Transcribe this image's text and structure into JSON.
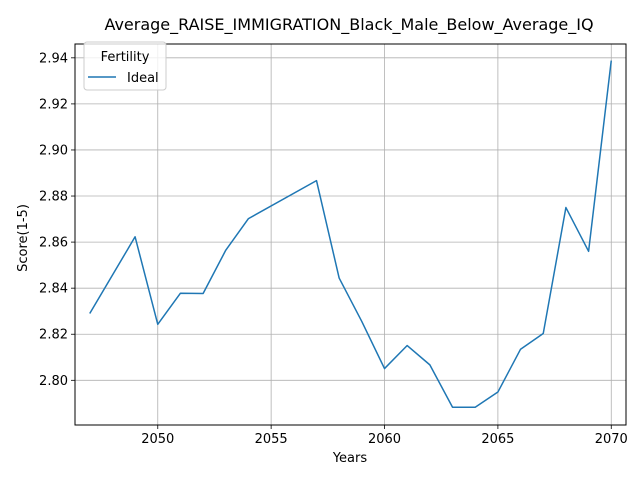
{
  "chart_data": {
    "type": "line",
    "title": "Average_RAISE_IMMIGRATION_Black_Male_Below_Average_IQ",
    "xlabel": "Years",
    "ylabel": "Score(1-5)",
    "xlim": [
      2046.35,
      2070.65
    ],
    "ylim": [
      2.7806,
      2.946
    ],
    "xticks": [
      2050,
      2055,
      2060,
      2065,
      2070
    ],
    "yticks": [
      2.8,
      2.82,
      2.84,
      2.86,
      2.88,
      2.9,
      2.92,
      2.94
    ],
    "xtick_labels": [
      "2050",
      "2055",
      "2060",
      "2065",
      "2070"
    ],
    "ytick_labels": [
      "2.80",
      "2.82",
      "2.84",
      "2.86",
      "2.88",
      "2.90",
      "2.92",
      "2.94"
    ],
    "grid": true,
    "legend": {
      "title": "Fertility",
      "position": "top-left"
    },
    "series": [
      {
        "name": "Ideal",
        "color": "#1f77b4",
        "x": [
          2047,
          2049,
          2050,
          2051,
          2052,
          2053,
          2054,
          2057,
          2058,
          2059,
          2060,
          2061,
          2062,
          2063,
          2064,
          2065,
          2066,
          2067,
          2068,
          2069,
          2070
        ],
        "y": [
          2.829,
          2.8623,
          2.8243,
          2.8378,
          2.8377,
          2.8565,
          2.8702,
          2.8867,
          2.8444,
          2.8255,
          2.8051,
          2.8151,
          2.8067,
          2.7883,
          2.7883,
          2.7949,
          2.8135,
          2.8203,
          2.875,
          2.856,
          2.9388
        ]
      }
    ]
  }
}
